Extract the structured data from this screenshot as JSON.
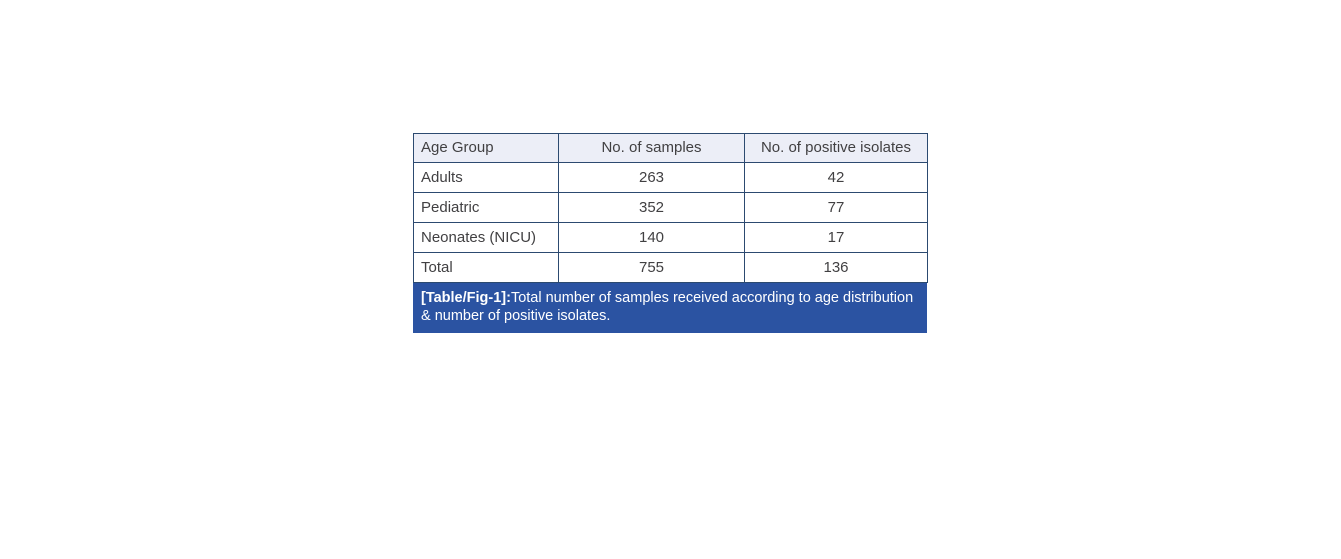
{
  "page": {
    "background_color": "#ffffff"
  },
  "figure": {
    "colors": {
      "border": "#2c4a70",
      "header_background": "#eceef7",
      "row_background": "#ffffff",
      "caption_background": "#2b53a2",
      "caption_text": "#ffffff",
      "cell_text": "#414042"
    },
    "table": {
      "columns": [
        "Age Group",
        "No. of samples",
        "No. of positive isolates"
      ],
      "rows": [
        [
          "Adults",
          "263",
          "42"
        ],
        [
          "Pediatric",
          "352",
          "77"
        ],
        [
          "Neonates (NICU)",
          "140",
          "17"
        ],
        [
          "Total",
          "755",
          "136"
        ]
      ]
    },
    "caption": {
      "label": "[Table/Fig-1]:",
      "text": "Total number of samples received according to age distribution & number of positive isolates."
    }
  },
  "chart_data": {
    "type": "table",
    "title": "[Table/Fig-1]: Total number of samples received according to age distribution & number of positive isolates.",
    "columns": [
      "Age Group",
      "No. of samples",
      "No. of positive isolates"
    ],
    "categories": [
      "Adults",
      "Pediatric",
      "Neonates (NICU)",
      "Total"
    ],
    "series": [
      {
        "name": "No. of samples",
        "values": [
          263,
          352,
          140,
          755
        ]
      },
      {
        "name": "No. of positive isolates",
        "values": [
          42,
          77,
          17,
          136
        ]
      }
    ]
  }
}
